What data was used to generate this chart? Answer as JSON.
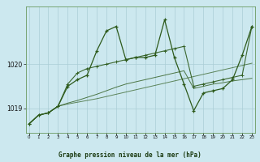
{
  "title": "Graphe pression niveau de la mer (hPa)",
  "bg_color": "#cce8ef",
  "grid_color": "#aacdd6",
  "line_color": "#2d5a1b",
  "x_ticks": [
    0,
    1,
    2,
    3,
    4,
    5,
    6,
    7,
    8,
    9,
    10,
    11,
    12,
    13,
    14,
    15,
    16,
    17,
    18,
    19,
    20,
    21,
    22,
    23
  ],
  "y_ticks": [
    1019,
    1020
  ],
  "ylim": [
    1018.45,
    1021.3
  ],
  "xlim": [
    -0.3,
    23.3
  ],
  "series": {
    "line1": [
      1018.65,
      1018.85,
      1018.9,
      1019.05,
      1019.5,
      1019.65,
      1019.75,
      1020.3,
      1020.75,
      1020.85,
      1020.1,
      1020.15,
      1020.15,
      1020.2,
      1021.0,
      1020.15,
      1019.55,
      1018.95,
      1019.35,
      1019.4,
      1019.45,
      1019.65,
      1020.2,
      1020.85
    ],
    "line2": [
      1018.65,
      1018.85,
      1018.9,
      1019.05,
      1019.55,
      1019.8,
      1019.9,
      1019.95,
      1020.0,
      1020.05,
      1020.1,
      1020.15,
      1020.2,
      1020.25,
      1020.3,
      1020.35,
      1020.4,
      1019.5,
      1019.55,
      1019.6,
      1019.65,
      1019.7,
      1019.75,
      1020.85
    ],
    "line3": [
      1018.65,
      1018.85,
      1018.9,
      1019.05,
      1019.12,
      1019.18,
      1019.25,
      1019.32,
      1019.4,
      1019.48,
      1019.55,
      1019.6,
      1019.65,
      1019.7,
      1019.75,
      1019.8,
      1019.85,
      1019.45,
      1019.5,
      1019.55,
      1019.58,
      1019.62,
      1019.65,
      1019.68
    ],
    "line4": [
      1018.65,
      1018.85,
      1018.9,
      1019.05,
      1019.1,
      1019.14,
      1019.18,
      1019.22,
      1019.27,
      1019.32,
      1019.37,
      1019.42,
      1019.47,
      1019.52,
      1019.57,
      1019.62,
      1019.67,
      1019.72,
      1019.77,
      1019.82,
      1019.87,
      1019.92,
      1019.97,
      1020.02
    ]
  }
}
